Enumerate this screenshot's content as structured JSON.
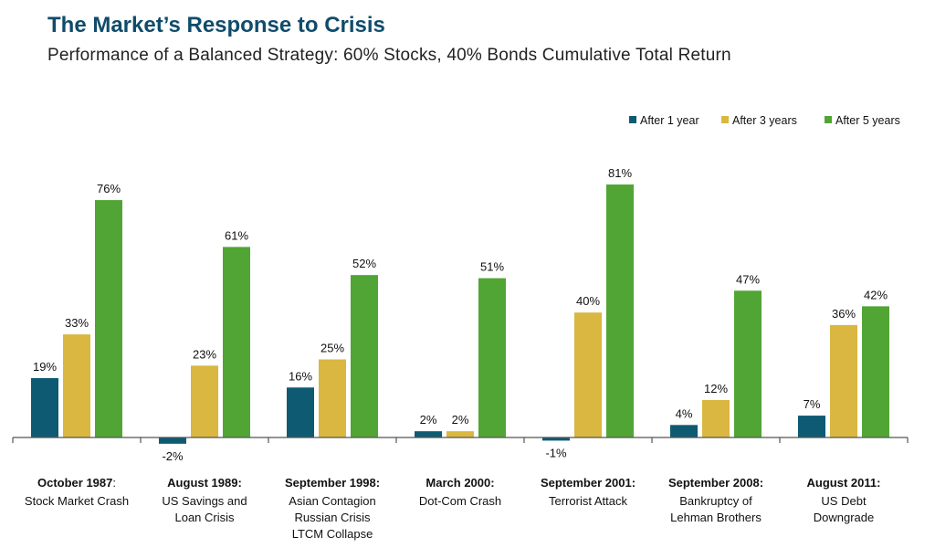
{
  "title": "The Market’s Response to Crisis",
  "subtitle": "Performance of a Balanced Strategy: 60% Stocks, 40% Bonds Cumulative Total Return",
  "colors": {
    "after1": "#0e5a72",
    "after3": "#d9b740",
    "after5": "#51a534"
  },
  "chart_data": {
    "type": "bar",
    "title": "",
    "xlabel": "",
    "ylabel": "",
    "ylim": [
      -5,
      90
    ],
    "legend": "top-right",
    "grid": false,
    "categories": [
      {
        "bold": "October 1987",
        "bold_suffix": ":",
        "lines": [
          "Stock Market Crash"
        ]
      },
      {
        "bold": "August 1989:",
        "bold_suffix": "",
        "lines": [
          "US Savings and",
          "Loan Crisis"
        ]
      },
      {
        "bold": "September 1998:",
        "bold_suffix": "",
        "lines": [
          "Asian Contagion",
          "Russian Crisis",
          "LTCM Collapse"
        ]
      },
      {
        "bold": "March 2000:",
        "bold_suffix": "",
        "lines": [
          "Dot-Com Crash"
        ]
      },
      {
        "bold": "September 2001:",
        "bold_suffix": "",
        "lines": [
          "Terrorist Attack"
        ]
      },
      {
        "bold": "September 2008:",
        "bold_suffix": "",
        "lines": [
          "Bankruptcy of",
          "Lehman Brothers"
        ]
      },
      {
        "bold": "August 2011:",
        "bold_suffix": "",
        "lines": [
          "US Debt",
          "Downgrade"
        ]
      }
    ],
    "series": [
      {
        "name": "After 1 year",
        "values": [
          19,
          -2,
          16,
          2,
          -1,
          4,
          7
        ],
        "labels": [
          "19%",
          "-2%",
          "16%",
          "2%",
          "-1%",
          "4%",
          "7%"
        ]
      },
      {
        "name": "After 3 years",
        "values": [
          33,
          23,
          25,
          2,
          40,
          12,
          36
        ],
        "labels": [
          "33%",
          "23%",
          "25%",
          "2%",
          "40%",
          "12%",
          "36%"
        ]
      },
      {
        "name": "After 5 years",
        "values": [
          76,
          61,
          52,
          51,
          81,
          47,
          42
        ],
        "labels": [
          "76%",
          "61%",
          "52%",
          "51%",
          "81%",
          "47%",
          "42%"
        ]
      }
    ]
  }
}
